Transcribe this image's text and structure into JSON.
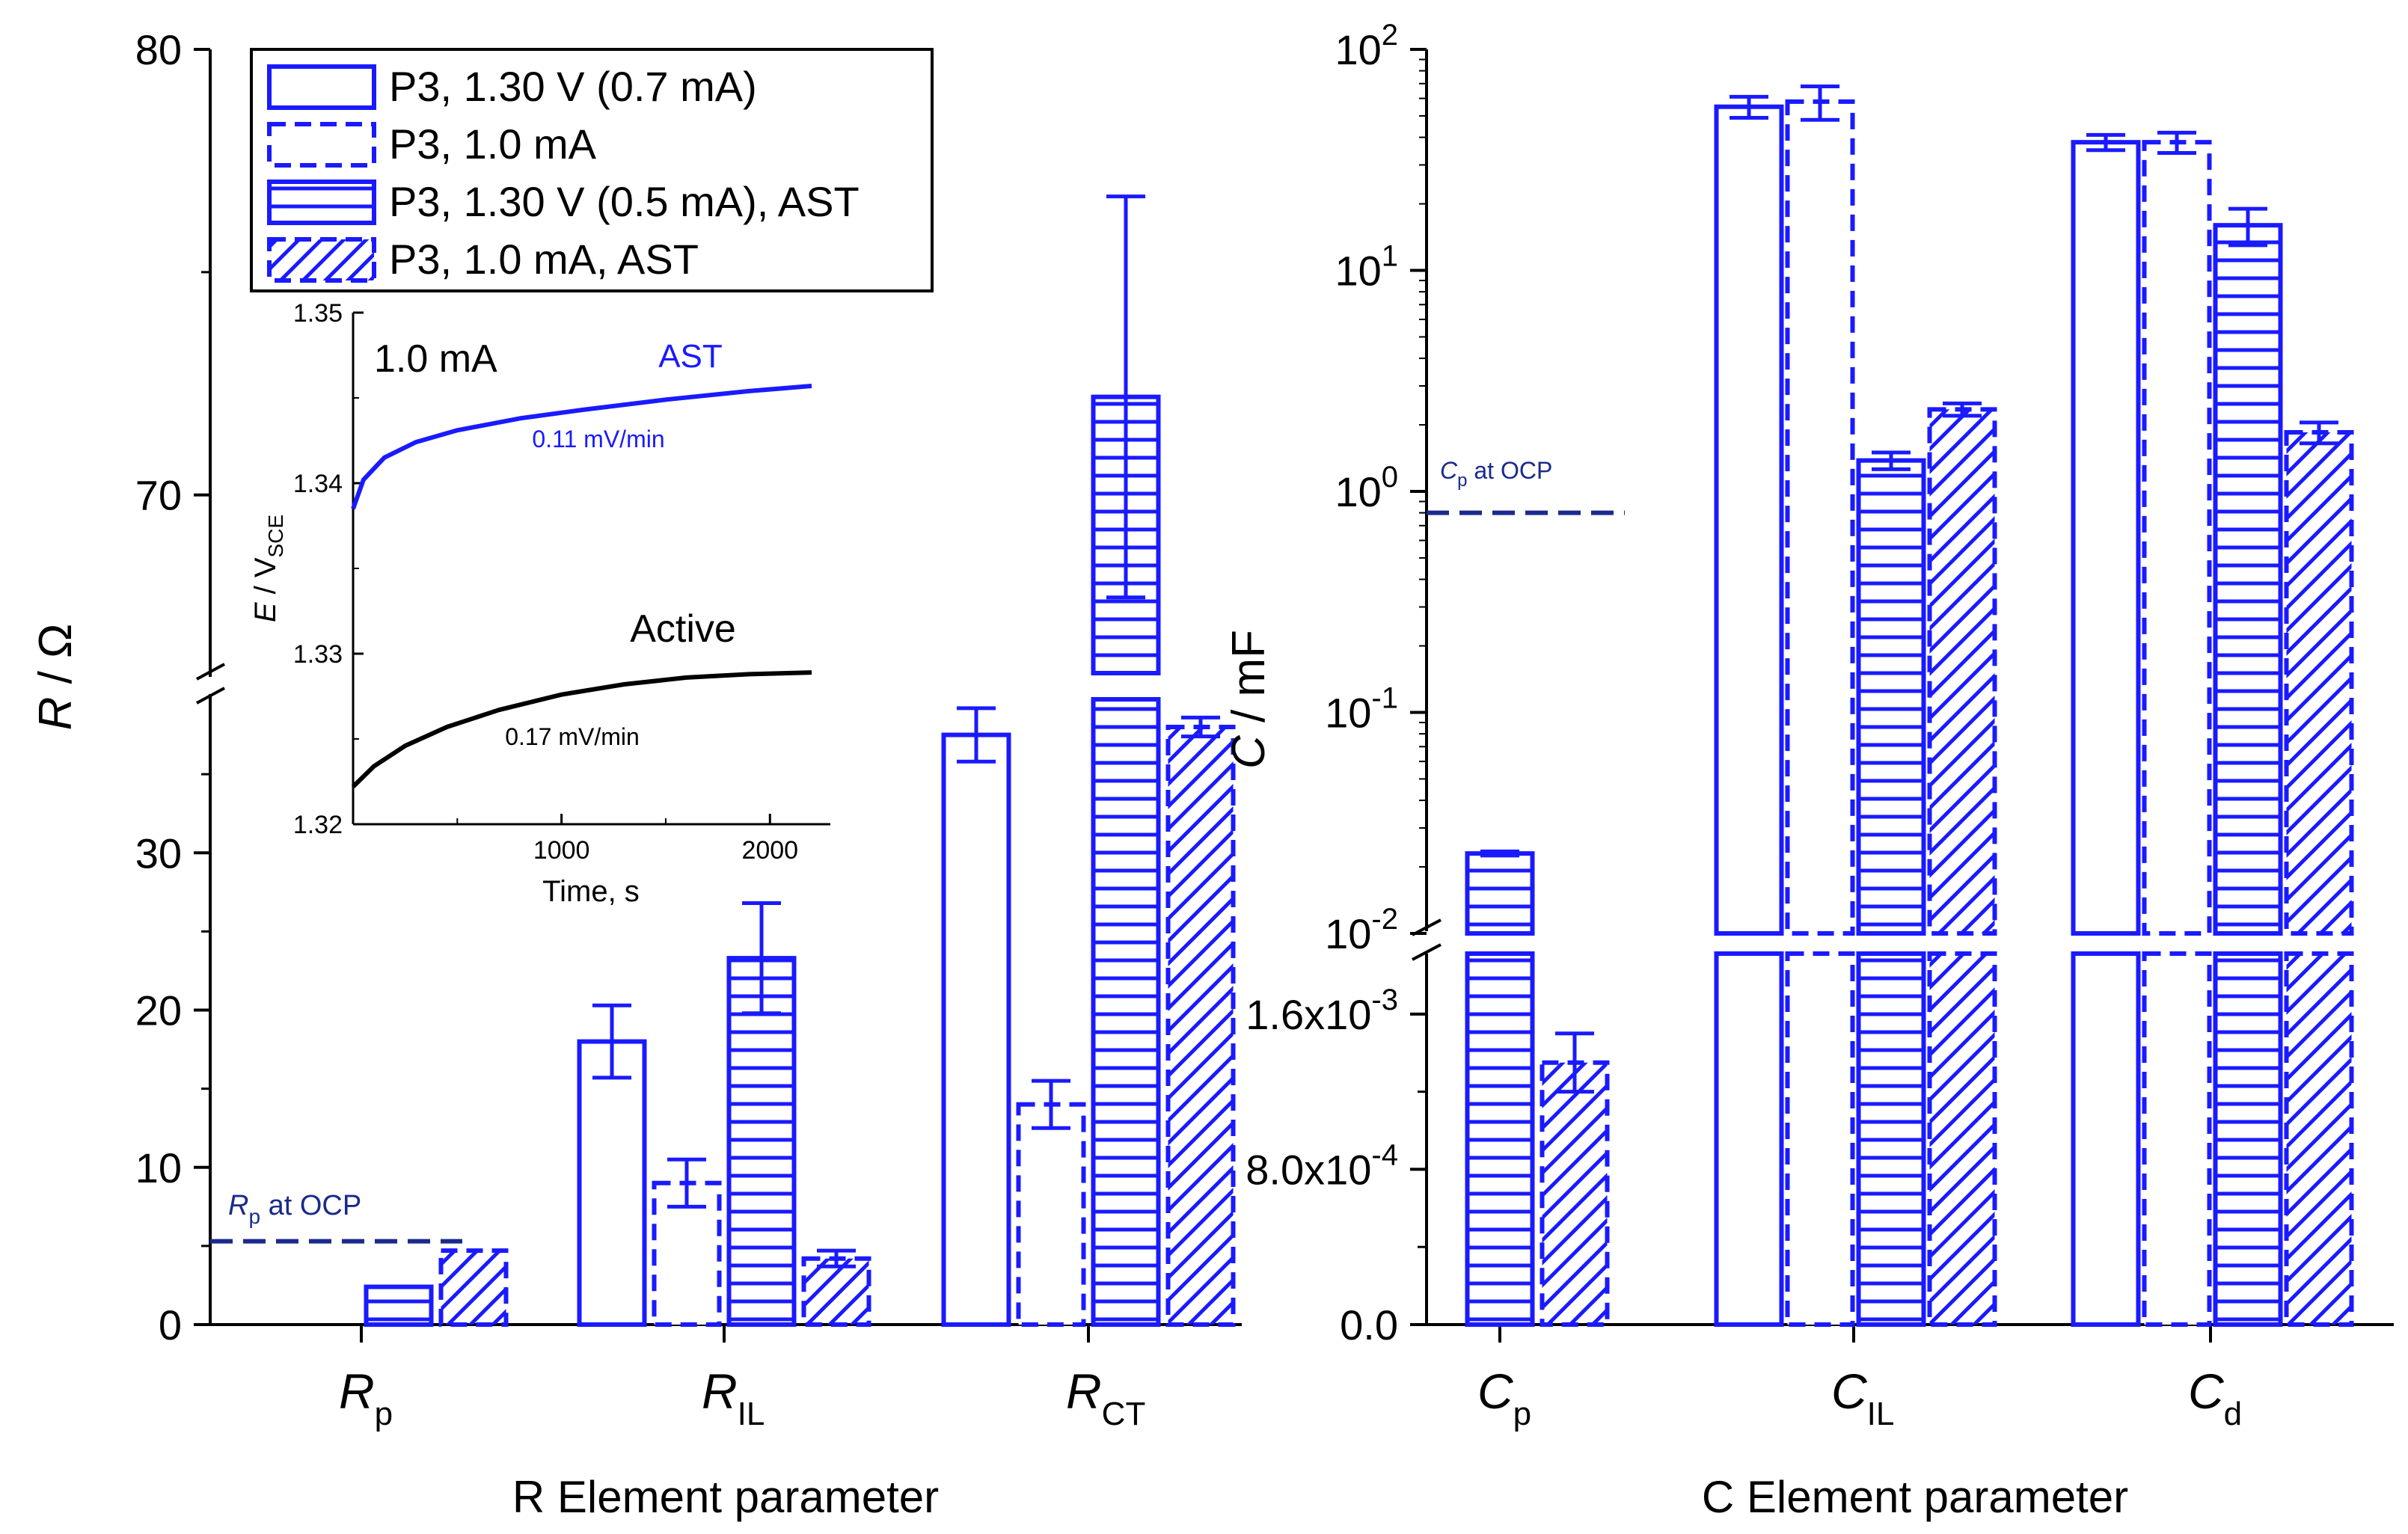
{
  "chart_data": [
    {
      "type": "bar",
      "id": "resistance",
      "categories": [
        "R_p",
        "R_IL",
        "R_CT"
      ],
      "category_labels": [
        {
          "main": "R",
          "sub": "p"
        },
        {
          "main": "R",
          "sub": "IL"
        },
        {
          "main": "R",
          "sub": "CT"
        }
      ],
      "series": [
        {
          "name": "P3, 1.30 V (0.7 mA)",
          "style": "open",
          "values": [
            null,
            18.0,
            37.5
          ],
          "errors": [
            null,
            2.3,
            1.7
          ]
        },
        {
          "name": "P3, 1.0 mA",
          "style": "dashed",
          "values": [
            null,
            9.0,
            14.0
          ],
          "errors": [
            null,
            1.5,
            1.5
          ]
        },
        {
          "name": "P3, 1.30 V (0.5 mA), AST",
          "style": "horizontal-lines",
          "values": [
            2.4,
            23.3,
            72.2
          ],
          "errors": [
            null,
            3.5,
            4.5
          ]
        },
        {
          "name": "P3, 1.0 mA, AST",
          "style": "diagonal-hatch",
          "values": [
            4.7,
            4.2,
            38.0
          ],
          "errors": [
            null,
            0.5,
            0.6
          ]
        }
      ],
      "xlabel": "R Element parameter",
      "ylabel_main": "R",
      "ylabel_rest": " / Ω",
      "y_lower_range": [
        0,
        40
      ],
      "y_upper_range": [
        66,
        80
      ],
      "y_ticks_lower": [
        0,
        10,
        20,
        30
      ],
      "y_ticks_upper": [
        70,
        80
      ],
      "reference_line": {
        "label_main": "R",
        "label_sub": "p",
        "label_rest": " at OCP",
        "value": 5.3
      },
      "legend": {
        "position": "top-left",
        "entries": [
          "P3, 1.30 V (0.7 mA)",
          "P3, 1.0 mA",
          "P3, 1.30 V (0.5 mA), AST",
          "P3, 1.0 mA, AST"
        ]
      }
    },
    {
      "type": "line",
      "id": "inset",
      "xlabel": "Time, s",
      "ylabel_main": "E",
      "ylabel_rest": " / V",
      "ylabel_sub": "SCE",
      "xlim": [
        0,
        2200
      ],
      "ylim": [
        1.32,
        1.35
      ],
      "x_ticks": [
        1000,
        2000
      ],
      "y_ticks": [
        1.32,
        1.33,
        1.34,
        1.35
      ],
      "title": "1.0 mA",
      "series": [
        {
          "name": "AST",
          "color": "#1a1aff",
          "rate_label": "0.11 mV/min",
          "x": [
            0,
            50,
            150,
            300,
            500,
            800,
            1100,
            1500,
            1900,
            2200
          ],
          "y": [
            1.3385,
            1.3402,
            1.3415,
            1.3424,
            1.3431,
            1.3438,
            1.3443,
            1.3449,
            1.3454,
            1.3457
          ]
        },
        {
          "name": "Active",
          "color": "#000000",
          "rate_label": "0.17 mV/min",
          "x": [
            0,
            100,
            250,
            450,
            700,
            1000,
            1300,
            1600,
            1900,
            2200
          ],
          "y": [
            1.3222,
            1.3234,
            1.3246,
            1.3257,
            1.3267,
            1.3276,
            1.3282,
            1.3286,
            1.3288,
            1.3289
          ]
        }
      ]
    },
    {
      "type": "bar",
      "id": "capacitance",
      "categories": [
        "C_p",
        "C_IL",
        "C_d"
      ],
      "category_labels": [
        {
          "main": "C",
          "sub": "p"
        },
        {
          "main": "C",
          "sub": "IL"
        },
        {
          "main": "C",
          "sub": "d"
        }
      ],
      "series": [
        {
          "name": "P3, 1.30 V (0.7 mA)",
          "style": "open",
          "values": [
            null,
            55,
            38
          ],
          "errors": [
            null,
            6,
            3
          ]
        },
        {
          "name": "P3, 1.0 mA",
          "style": "dashed",
          "values": [
            null,
            58,
            38
          ],
          "errors": [
            null,
            10,
            4
          ]
        },
        {
          "name": "P3, 1.30 V (0.5 mA), AST",
          "style": "horizontal-lines",
          "values": [
            0.023,
            1.38,
            16
          ],
          "errors": [
            0.0005,
            0.12,
            3
          ]
        },
        {
          "name": "P3, 1.0 mA, AST",
          "style": "diagonal-hatch",
          "values": [
            0.00135,
            2.35,
            1.85
          ],
          "errors": [
            0.00015,
            0.15,
            0.2
          ]
        }
      ],
      "xlabel": "C Element parameter",
      "ylabel_main": "C",
      "ylabel_rest": " / mF",
      "y_lower_range": [
        0,
        0.0019
      ],
      "y_lower_scale": "linear",
      "y_upper_range": [
        0.008,
        100
      ],
      "y_upper_scale": "log",
      "y_ticks_lower": [
        {
          "v": 0,
          "label": "0.0"
        },
        {
          "v": 0.0008,
          "m": "8.0x10",
          "e": "-4"
        },
        {
          "v": 0.0016,
          "m": "1.6x10",
          "e": "-3"
        }
      ],
      "y_ticks_upper": [
        {
          "v": 0.01,
          "m": "10",
          "e": "-2"
        },
        {
          "v": 0.1,
          "m": "10",
          "e": "-1"
        },
        {
          "v": 1,
          "m": "10",
          "e": "0"
        },
        {
          "v": 10,
          "m": "10",
          "e": "1"
        },
        {
          "v": 100,
          "m": "10",
          "e": "2"
        }
      ],
      "reference_line": {
        "label_main": "C",
        "label_sub": "p",
        "label_rest": " at OCP",
        "value": 0.8
      }
    }
  ],
  "colors": {
    "blue": "#1a1aff",
    "navy": "#1a2a8c",
    "black": "#000000"
  }
}
